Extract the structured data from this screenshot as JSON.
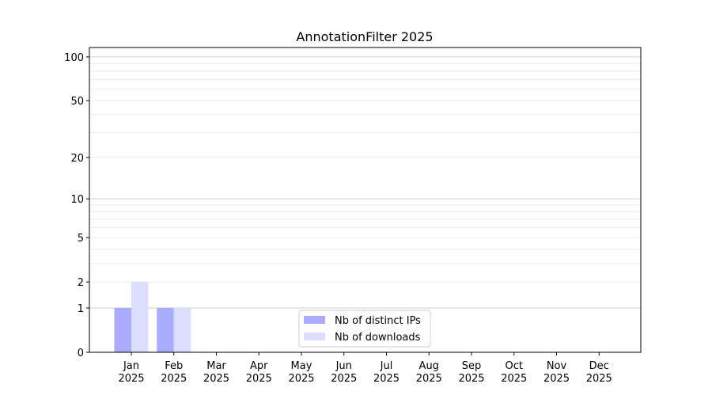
{
  "chart_data": {
    "type": "bar",
    "title": "AnnotationFilter 2025",
    "xlabel": "",
    "ylabel": "",
    "y_scale": "log(1+y)",
    "ylim": [
      0,
      116
    ],
    "y_ticks": [
      0,
      1,
      2,
      5,
      10,
      20,
      50,
      100
    ],
    "grid": "horizontal, major at 1/10/100, minor between",
    "legend_position": "lower center",
    "categories": [
      [
        "Jan",
        "2025"
      ],
      [
        "Feb",
        "2025"
      ],
      [
        "Mar",
        "2025"
      ],
      [
        "Apr",
        "2025"
      ],
      [
        "May",
        "2025"
      ],
      [
        "Jun",
        "2025"
      ],
      [
        "Jul",
        "2025"
      ],
      [
        "Aug",
        "2025"
      ],
      [
        "Sep",
        "2025"
      ],
      [
        "Oct",
        "2025"
      ],
      [
        "Nov",
        "2025"
      ],
      [
        "Dec",
        "2025"
      ]
    ],
    "series": [
      {
        "name": "Nb of distinct IPs",
        "color": "#aaaaff",
        "values": [
          1,
          1,
          0,
          0,
          0,
          0,
          0,
          0,
          0,
          0,
          0,
          0
        ]
      },
      {
        "name": "Nb of downloads",
        "color": "#ddddff",
        "values": [
          2,
          1,
          0,
          0,
          0,
          0,
          0,
          0,
          0,
          0,
          0,
          0
        ]
      }
    ]
  }
}
